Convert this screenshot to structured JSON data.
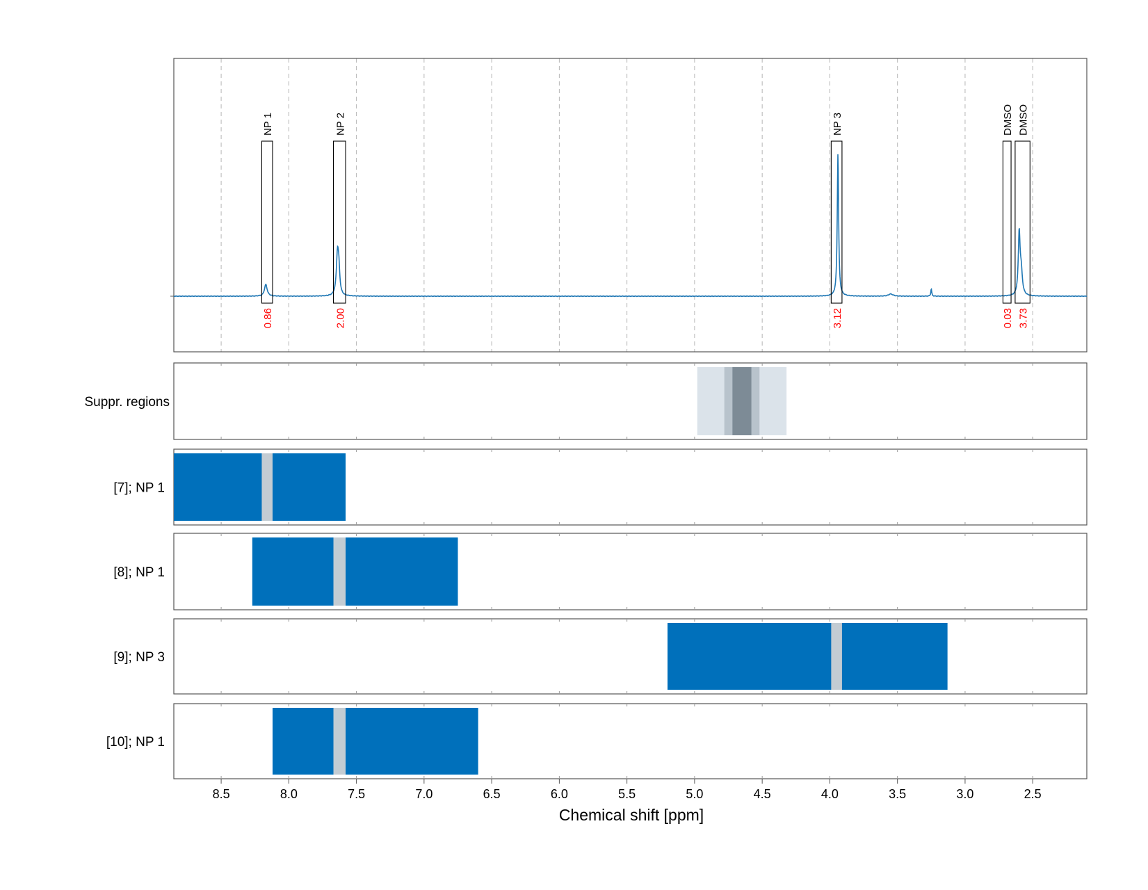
{
  "chart_data": {
    "type": "line",
    "xlabel": "Chemical shift [ppm]",
    "x_axis": {
      "range": [
        8.85,
        2.1
      ],
      "reversed": true,
      "ticks": [
        8.5,
        8.0,
        7.5,
        7.0,
        6.5,
        6.0,
        5.5,
        5.0,
        4.5,
        4.0,
        3.5,
        3.0,
        2.5
      ],
      "tick_labels": [
        "8.5",
        "8.0",
        "7.5",
        "7.0",
        "6.5",
        "6.0",
        "5.5",
        "5.0",
        "4.5",
        "4.0",
        "3.5",
        "3.0",
        "2.5"
      ],
      "grid": "dashed vertical"
    },
    "colors": {
      "spectrum": "#1f77b4",
      "bar": "#0070bb",
      "bar_gap": "#c3ccd3",
      "integral_text": "#ff0000",
      "suppr_light": "#dbe3ea",
      "suppr_mid": "#b8c3cc",
      "suppr_dark": "#7d8b96"
    },
    "spectrum": {
      "peaks": [
        {
          "ppm": 8.17,
          "height": 0.08,
          "width": 0.012
        },
        {
          "ppm": 7.64,
          "height": 0.28,
          "width": 0.01
        },
        {
          "ppm": 7.63,
          "height": 0.14,
          "width": 0.008
        },
        {
          "ppm": 3.94,
          "height": 0.97,
          "width": 0.006
        },
        {
          "ppm": 3.55,
          "height": 0.015,
          "width": 0.02
        },
        {
          "ppm": 3.25,
          "height": 0.05,
          "width": 0.004
        },
        {
          "ppm": 2.6,
          "height": 0.42,
          "width": 0.008
        },
        {
          "ppm": 2.585,
          "height": 0.15,
          "width": 0.01
        }
      ]
    },
    "annotations": [
      {
        "label": "NP 1",
        "integral": "0.86",
        "x_range": [
          8.2,
          8.12
        ]
      },
      {
        "label": "NP 2",
        "integral": "2.00",
        "x_range": [
          7.67,
          7.58
        ]
      },
      {
        "label": "NP 3",
        "integral": "3.12",
        "x_range": [
          3.99,
          3.91
        ]
      },
      {
        "label": "DMSO",
        "integral": "0.03",
        "x_range": [
          2.72,
          2.66
        ]
      },
      {
        "label": "DMSO",
        "integral": "3.73",
        "x_range": [
          2.63,
          2.52
        ]
      }
    ],
    "suppression_regions": {
      "label": "Suppr. regions",
      "light": [
        4.98,
        4.32
      ],
      "mid": [
        4.78,
        4.52
      ],
      "dark": [
        4.72,
        4.58
      ]
    },
    "range_rows": [
      {
        "label": "[7]; NP 1",
        "x_range": [
          8.85,
          7.58
        ],
        "gap": [
          8.2,
          8.12
        ]
      },
      {
        "label": "[8]; NP 1",
        "x_range": [
          8.27,
          6.75
        ],
        "gap": [
          7.67,
          7.58
        ]
      },
      {
        "label": "[9]; NP 3",
        "x_range": [
          5.2,
          3.13
        ],
        "gap": [
          3.99,
          3.91
        ]
      },
      {
        "label": "[10]; NP 1",
        "x_range": [
          8.12,
          6.6
        ],
        "gap": [
          7.67,
          7.58
        ]
      }
    ]
  }
}
